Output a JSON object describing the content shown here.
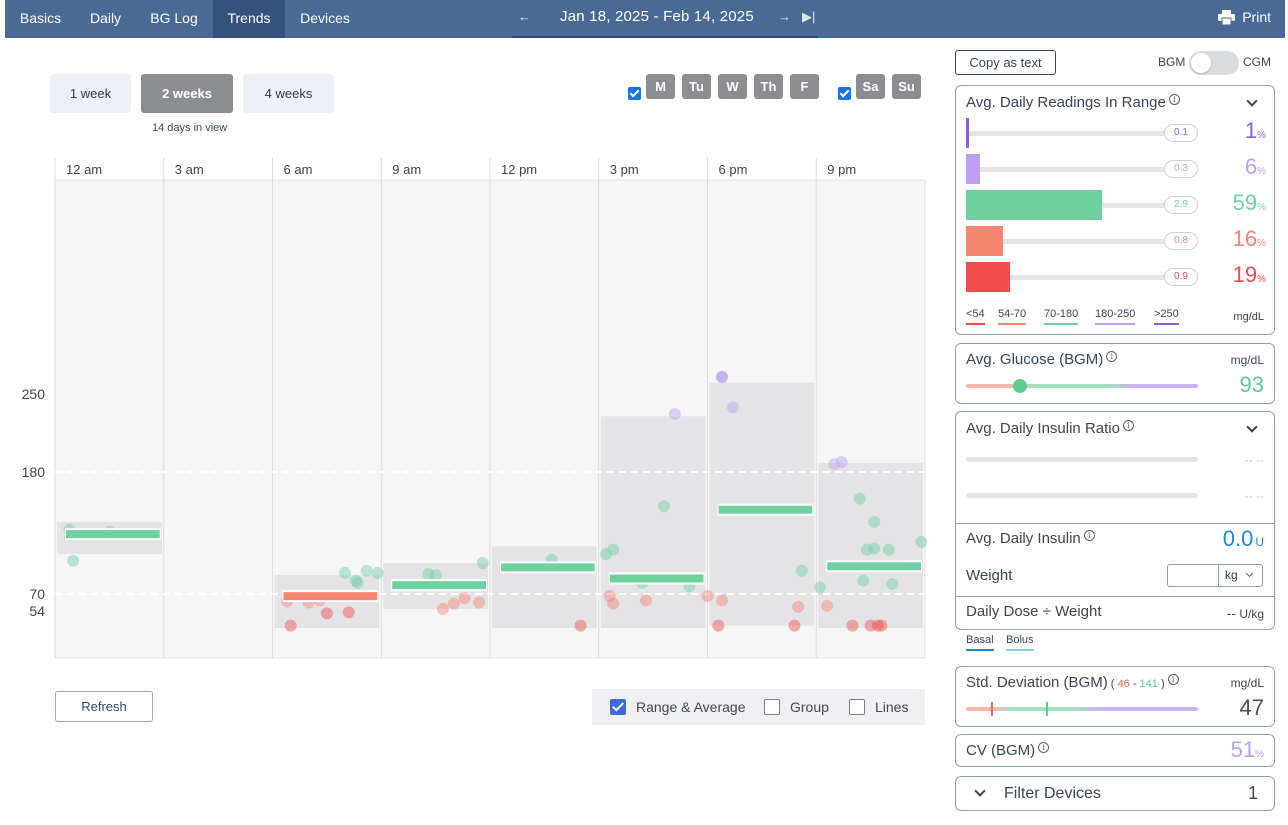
{
  "nav": {
    "tabs": [
      "Basics",
      "Daily",
      "BG Log",
      "Trends",
      "Devices"
    ],
    "active_tab": "Trends",
    "date_range": "Jan 18, 2025 - Feb 14, 2025",
    "print_label": "Print"
  },
  "period": {
    "buttons": [
      "1 week",
      "2 weeks",
      "4 weeks"
    ],
    "active": "2 weeks",
    "days_in_view": "14 days in view"
  },
  "days": {
    "weekdays": [
      "M",
      "Tu",
      "W",
      "Th",
      "F"
    ],
    "weekend": [
      "Sa",
      "Su"
    ],
    "weekdays_checked": true,
    "weekend_checked": true
  },
  "colors": {
    "very_low": "#ef4b4b",
    "low": "#f58471",
    "target": "#6fd1a0",
    "high": "#bc9ff0",
    "very_high": "#8a5fe0",
    "range_band": "#e4e4e6",
    "header_bg": "#4a6a96",
    "accent_blue": "#1a8ad8"
  },
  "chart_data": {
    "type": "scatter",
    "x_tick_labels": [
      "12 am",
      "3 am",
      "6 am",
      "9 am",
      "12 pm",
      "3 pm",
      "6 pm",
      "9 pm"
    ],
    "y_ticks": [
      54,
      70,
      180,
      250
    ],
    "y_range": [
      0,
      400
    ],
    "target_lines": [
      70,
      180
    ],
    "bins": [
      {
        "slot": "12 am",
        "min": 106,
        "max": 135,
        "avg": 124
      },
      {
        "slot": "6 am",
        "min": 40,
        "max": 87,
        "avg": 68
      },
      {
        "slot": "9 am",
        "min": 56,
        "max": 98,
        "avg": 78
      },
      {
        "slot": "12 pm",
        "min": 40,
        "max": 113,
        "avg": 94
      },
      {
        "slot": "3 pm",
        "min": 40,
        "max": 230,
        "avg": 84
      },
      {
        "slot": "6 pm",
        "min": 42,
        "max": 258,
        "avg": 146
      },
      {
        "slot": "9 pm",
        "min": 40,
        "max": 188,
        "avg": 95
      }
    ],
    "points": [
      {
        "hour": 0.4,
        "bg": 128
      },
      {
        "hour": 0.5,
        "bg": 100
      },
      {
        "hour": 1.5,
        "bg": 126
      },
      {
        "hour": 6.4,
        "bg": 63
      },
      {
        "hour": 6.5,
        "bg": 42
      },
      {
        "hour": 7.0,
        "bg": 62
      },
      {
        "hour": 7.3,
        "bg": 64
      },
      {
        "hour": 7.5,
        "bg": 52
      },
      {
        "hour": 8.0,
        "bg": 89
      },
      {
        "hour": 8.1,
        "bg": 53
      },
      {
        "hour": 8.3,
        "bg": 82
      },
      {
        "hour": 8.35,
        "bg": 80
      },
      {
        "hour": 8.6,
        "bg": 91
      },
      {
        "hour": 8.9,
        "bg": 89
      },
      {
        "hour": 10.3,
        "bg": 88
      },
      {
        "hour": 10.5,
        "bg": 87
      },
      {
        "hour": 10.7,
        "bg": 56
      },
      {
        "hour": 11.0,
        "bg": 61
      },
      {
        "hour": 11.3,
        "bg": 66
      },
      {
        "hour": 11.7,
        "bg": 62
      },
      {
        "hour": 11.8,
        "bg": 98
      },
      {
        "hour": 13.7,
        "bg": 101
      },
      {
        "hour": 14.5,
        "bg": 42
      },
      {
        "hour": 15.2,
        "bg": 106
      },
      {
        "hour": 15.4,
        "bg": 110
      },
      {
        "hour": 15.3,
        "bg": 68
      },
      {
        "hour": 15.4,
        "bg": 61
      },
      {
        "hour": 16.2,
        "bg": 80
      },
      {
        "hour": 16.3,
        "bg": 64
      },
      {
        "hour": 16.8,
        "bg": 149
      },
      {
        "hour": 17.1,
        "bg": 232
      },
      {
        "hour": 17.5,
        "bg": 77
      },
      {
        "hour": 18.0,
        "bg": 68
      },
      {
        "hour": 18.3,
        "bg": 42
      },
      {
        "hour": 18.4,
        "bg": 64
      },
      {
        "hour": 18.4,
        "bg": 262
      },
      {
        "hour": 18.7,
        "bg": 238
      },
      {
        "hour": 20.4,
        "bg": 42
      },
      {
        "hour": 20.5,
        "bg": 58
      },
      {
        "hour": 20.6,
        "bg": 91
      },
      {
        "hour": 21.1,
        "bg": 76
      },
      {
        "hour": 21.3,
        "bg": 59
      },
      {
        "hour": 21.5,
        "bg": 187
      },
      {
        "hour": 21.7,
        "bg": 189
      },
      {
        "hour": 22.0,
        "bg": 42
      },
      {
        "hour": 22.2,
        "bg": 156
      },
      {
        "hour": 22.3,
        "bg": 82
      },
      {
        "hour": 22.4,
        "bg": 110
      },
      {
        "hour": 22.6,
        "bg": 135
      },
      {
        "hour": 22.6,
        "bg": 111
      },
      {
        "hour": 22.5,
        "bg": 42
      },
      {
        "hour": 22.7,
        "bg": 42
      },
      {
        "hour": 22.8,
        "bg": 42
      },
      {
        "hour": 23.0,
        "bg": 110
      },
      {
        "hour": 23.1,
        "bg": 79
      },
      {
        "hour": 23.9,
        "bg": 117
      }
    ]
  },
  "chart_controls": {
    "refresh_label": "Refresh",
    "options": [
      {
        "label": "Range & Average",
        "checked": true
      },
      {
        "label": "Group",
        "checked": false
      },
      {
        "label": "Lines",
        "checked": false
      }
    ]
  },
  "right_panel": {
    "copy_label": "Copy as text",
    "toggle_left": "BGM",
    "toggle_right": "CGM",
    "readings_in_range": {
      "title": "Avg. Daily Readings In Range",
      "rows": [
        {
          "count": "0.1",
          "percent": "1",
          "fraction": 0.01,
          "color": "#8a5fe0"
        },
        {
          "count": "0.3",
          "percent": "6",
          "fraction": 0.06,
          "color": "#bc9ff0"
        },
        {
          "count": "2.9",
          "percent": "59",
          "fraction": 0.59,
          "color": "#6fd1a0"
        },
        {
          "count": "0.8",
          "percent": "16",
          "fraction": 0.16,
          "color": "#f58471"
        },
        {
          "count": "0.9",
          "percent": "19",
          "fraction": 0.19,
          "color": "#ef4b4b"
        }
      ],
      "pct_symbol": "%",
      "legend": [
        {
          "label": "<54",
          "color": "#ef4b4b"
        },
        {
          "label": "54-70",
          "color": "#f58471"
        },
        {
          "label": "70-180",
          "color": "#6fd1a0"
        },
        {
          "label": "180-250",
          "color": "#bc9ff0"
        },
        {
          "label": ">250",
          "color": "#8a5fe0"
        }
      ],
      "unit": "mg/dL"
    },
    "avg_glucose": {
      "title": "Avg. Glucose (BGM)",
      "unit": "mg/dL",
      "value": "93"
    },
    "insulin_ratio": {
      "title": "Avg. Daily Insulin Ratio",
      "dash1": "-- --",
      "dash2": "-- --"
    },
    "avg_daily_insulin": {
      "title": "Avg. Daily Insulin",
      "value": "0.0",
      "unit": "U"
    },
    "weight": {
      "label": "Weight",
      "unit_option": "kg"
    },
    "dose_weight": {
      "label": "Daily Dose ÷ Weight",
      "value": "--",
      "unit": "U/kg"
    },
    "insulin_legend": [
      {
        "label": "Basal",
        "color": "#1a8ad8"
      },
      {
        "label": "Bolus",
        "color": "#7fd6e0"
      }
    ],
    "std_dev": {
      "title": "Std. Deviation (BGM)",
      "range_low": "46",
      "range_high": "141",
      "range_sep": "-",
      "unit": "mg/dL",
      "value": "47"
    },
    "cv": {
      "title": "CV (BGM)",
      "value": "51",
      "pct_symbol": "%"
    },
    "filter": {
      "title": "Filter Devices",
      "count": "1"
    }
  }
}
